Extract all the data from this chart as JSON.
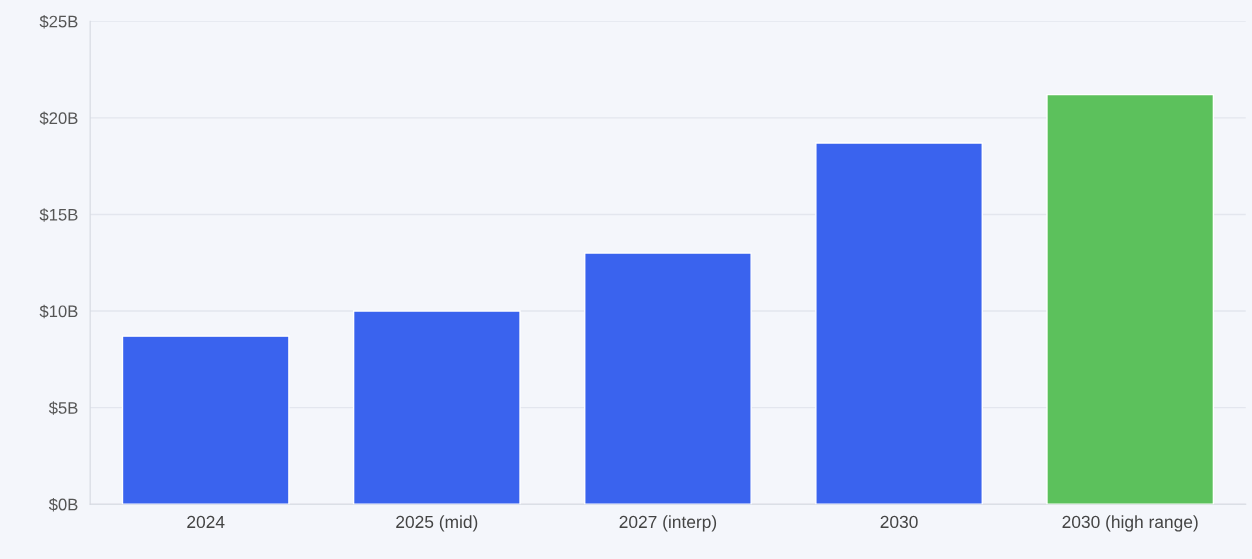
{
  "chart_data": {
    "type": "bar",
    "categories": [
      "2024",
      "2025 (mid)",
      "2027 (interp)",
      "2030",
      "2030 (high range)"
    ],
    "values": [
      8.7,
      10,
      13,
      18.7,
      21.2
    ],
    "colors": [
      "#3a63ee",
      "#3a63ee",
      "#3a63ee",
      "#3a63ee",
      "#5cc15c"
    ],
    "ylim": [
      0,
      25
    ],
    "yticks": [
      {
        "value": 0,
        "label": "$0B"
      },
      {
        "value": 5,
        "label": "$5B"
      },
      {
        "value": 10,
        "label": "$10B"
      },
      {
        "value": 15,
        "label": "$15B"
      },
      {
        "value": 20,
        "label": "$20B"
      },
      {
        "value": 25,
        "label": "$25B"
      }
    ],
    "grid": "y"
  }
}
